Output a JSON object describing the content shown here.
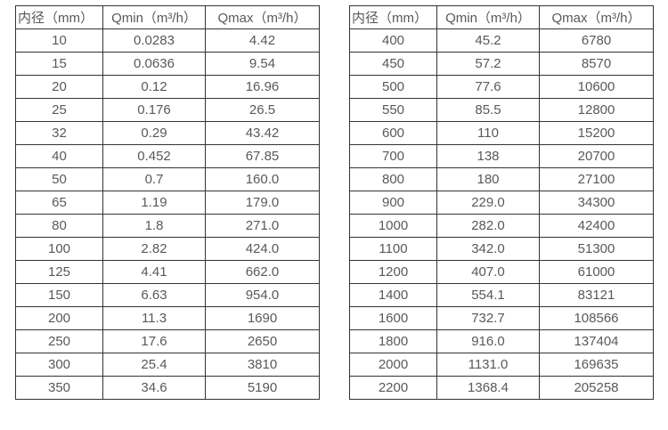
{
  "left_table": {
    "headers": [
      "内径（mm）",
      "Qmin（m³/h）",
      "Qmax（m³/h）"
    ],
    "rows": [
      [
        "10",
        "0.0283",
        "4.42"
      ],
      [
        "15",
        "0.0636",
        "9.54"
      ],
      [
        "20",
        "0.12",
        "16.96"
      ],
      [
        "25",
        "0.176",
        "26.5"
      ],
      [
        "32",
        "0.29",
        "43.42"
      ],
      [
        "40",
        "0.452",
        "67.85"
      ],
      [
        "50",
        "0.7",
        "160.0"
      ],
      [
        "65",
        "1.19",
        "179.0"
      ],
      [
        "80",
        "1.8",
        "271.0"
      ],
      [
        "100",
        "2.82",
        "424.0"
      ],
      [
        "125",
        "4.41",
        "662.0"
      ],
      [
        "150",
        "6.63",
        "954.0"
      ],
      [
        "200",
        "11.3",
        "1690"
      ],
      [
        "250",
        "17.6",
        "2650"
      ],
      [
        "300",
        "25.4",
        "3810"
      ],
      [
        "350",
        "34.6",
        "5190"
      ]
    ]
  },
  "right_table": {
    "headers": [
      "内径（mm）",
      "Qmin（m³/h）",
      "Qmax（m³/h）"
    ],
    "rows": [
      [
        "400",
        "45.2",
        "6780"
      ],
      [
        "450",
        "57.2",
        "8570"
      ],
      [
        "500",
        "77.6",
        "10600"
      ],
      [
        "550",
        "85.5",
        "12800"
      ],
      [
        "600",
        "110",
        "15200"
      ],
      [
        "700",
        "138",
        "20700"
      ],
      [
        "800",
        "180",
        "27100"
      ],
      [
        "900",
        "229.0",
        "34300"
      ],
      [
        "1000",
        "282.0",
        "42400"
      ],
      [
        "1100",
        "342.0",
        "51300"
      ],
      [
        "1200",
        "407.0",
        "61000"
      ],
      [
        "1400",
        "554.1",
        "83121"
      ],
      [
        "1600",
        "732.7",
        "108566"
      ],
      [
        "1800",
        "916.0",
        "137404"
      ],
      [
        "2000",
        "1131.0",
        "169635"
      ],
      [
        "2200",
        "1368.4",
        "205258"
      ]
    ]
  },
  "colors": {
    "text": "#595959",
    "border": "#333333",
    "background": "#ffffff"
  }
}
